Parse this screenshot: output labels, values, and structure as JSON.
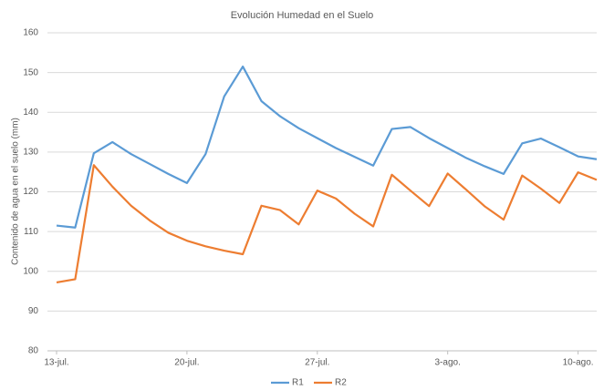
{
  "chart_data": {
    "type": "line",
    "title": "Evolución Humedad en el Suelo",
    "y_label": "Contenido de agua en el suelo (mm)",
    "categories": [
      "13-jul.",
      null,
      null,
      null,
      null,
      null,
      null,
      "20-jul.",
      null,
      null,
      null,
      null,
      null,
      null,
      "27-jul.",
      null,
      null,
      null,
      null,
      null,
      null,
      "3-ago.",
      null,
      null,
      null,
      null,
      null,
      null,
      "10-ago.",
      null
    ],
    "series": [
      {
        "name": "R1",
        "color": "#5b9bd5",
        "values": [
          111.5,
          111,
          129.7,
          132.5,
          129.5,
          127,
          124.5,
          122.2,
          129.5,
          144,
          151.5,
          142.8,
          139,
          136,
          133.5,
          131,
          128.8,
          126.6,
          135.8,
          136.3,
          133.5,
          131,
          128.5,
          126.4,
          124.5,
          132.2,
          133.4,
          131.2,
          128.9,
          128.2
        ]
      },
      {
        "name": "R2",
        "color": "#ed7d31",
        "values": [
          97.2,
          98,
          126.7,
          121.3,
          116.5,
          112.8,
          109.7,
          107.7,
          106.3,
          105.2,
          104.3,
          116.5,
          115.4,
          111.8,
          120.3,
          118.3,
          114.5,
          111.3,
          124.3,
          120.3,
          116.4,
          124.6,
          120.5,
          116.3,
          113,
          124.1,
          120.8,
          117.2,
          124.9,
          123
        ]
      }
    ],
    "ylim": [
      80,
      160
    ],
    "yticks": [
      80,
      90,
      100,
      110,
      120,
      130,
      140,
      150,
      160
    ],
    "grid": true
  }
}
